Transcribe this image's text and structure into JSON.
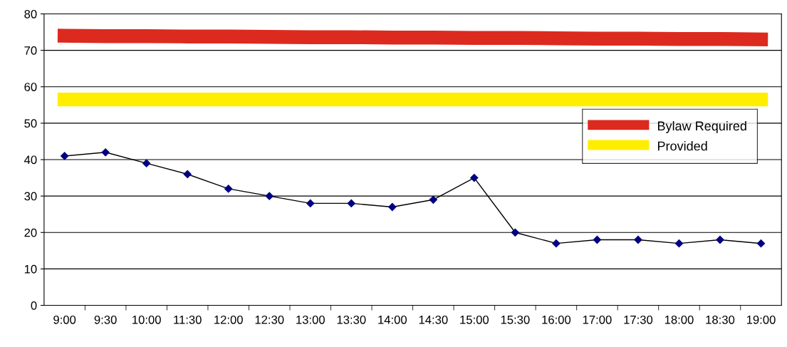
{
  "chart_data": {
    "type": "line",
    "categories": [
      "9:00",
      "9:30",
      "10:00",
      "11:30",
      "12:00",
      "12:30",
      "13:00",
      "13:30",
      "14:00",
      "14:30",
      "15:00",
      "15:30",
      "16:00",
      "17:00",
      "17:30",
      "18:00",
      "18:30",
      "19:00"
    ],
    "series": [
      {
        "name": "Bylaw Required",
        "color": "#dc2a1f",
        "marker": "none",
        "values": [
          74.0,
          73.9,
          73.9,
          73.8,
          73.8,
          73.7,
          73.6,
          73.6,
          73.5,
          73.5,
          73.4,
          73.4,
          73.3,
          73.2,
          73.2,
          73.1,
          73.1,
          73.0
        ]
      },
      {
        "name": "Provided",
        "color": "#ffee00",
        "marker": "none",
        "values": [
          56.5,
          56.5,
          56.5,
          56.5,
          56.5,
          56.5,
          56.5,
          56.5,
          56.5,
          56.5,
          56.5,
          56.5,
          56.5,
          56.5,
          56.5,
          56.5,
          56.5,
          56.5
        ]
      },
      {
        "color": "#000080",
        "marker": "diamond",
        "values": [
          41,
          42,
          39,
          36,
          32,
          30,
          28,
          28,
          27,
          29,
          35,
          20,
          17,
          18,
          18,
          17,
          18,
          17
        ]
      }
    ],
    "ylim": [
      0,
      80
    ],
    "yticks": [
      0,
      10,
      20,
      30,
      40,
      50,
      60,
      70,
      80
    ],
    "grid": "y",
    "legend": "right"
  }
}
